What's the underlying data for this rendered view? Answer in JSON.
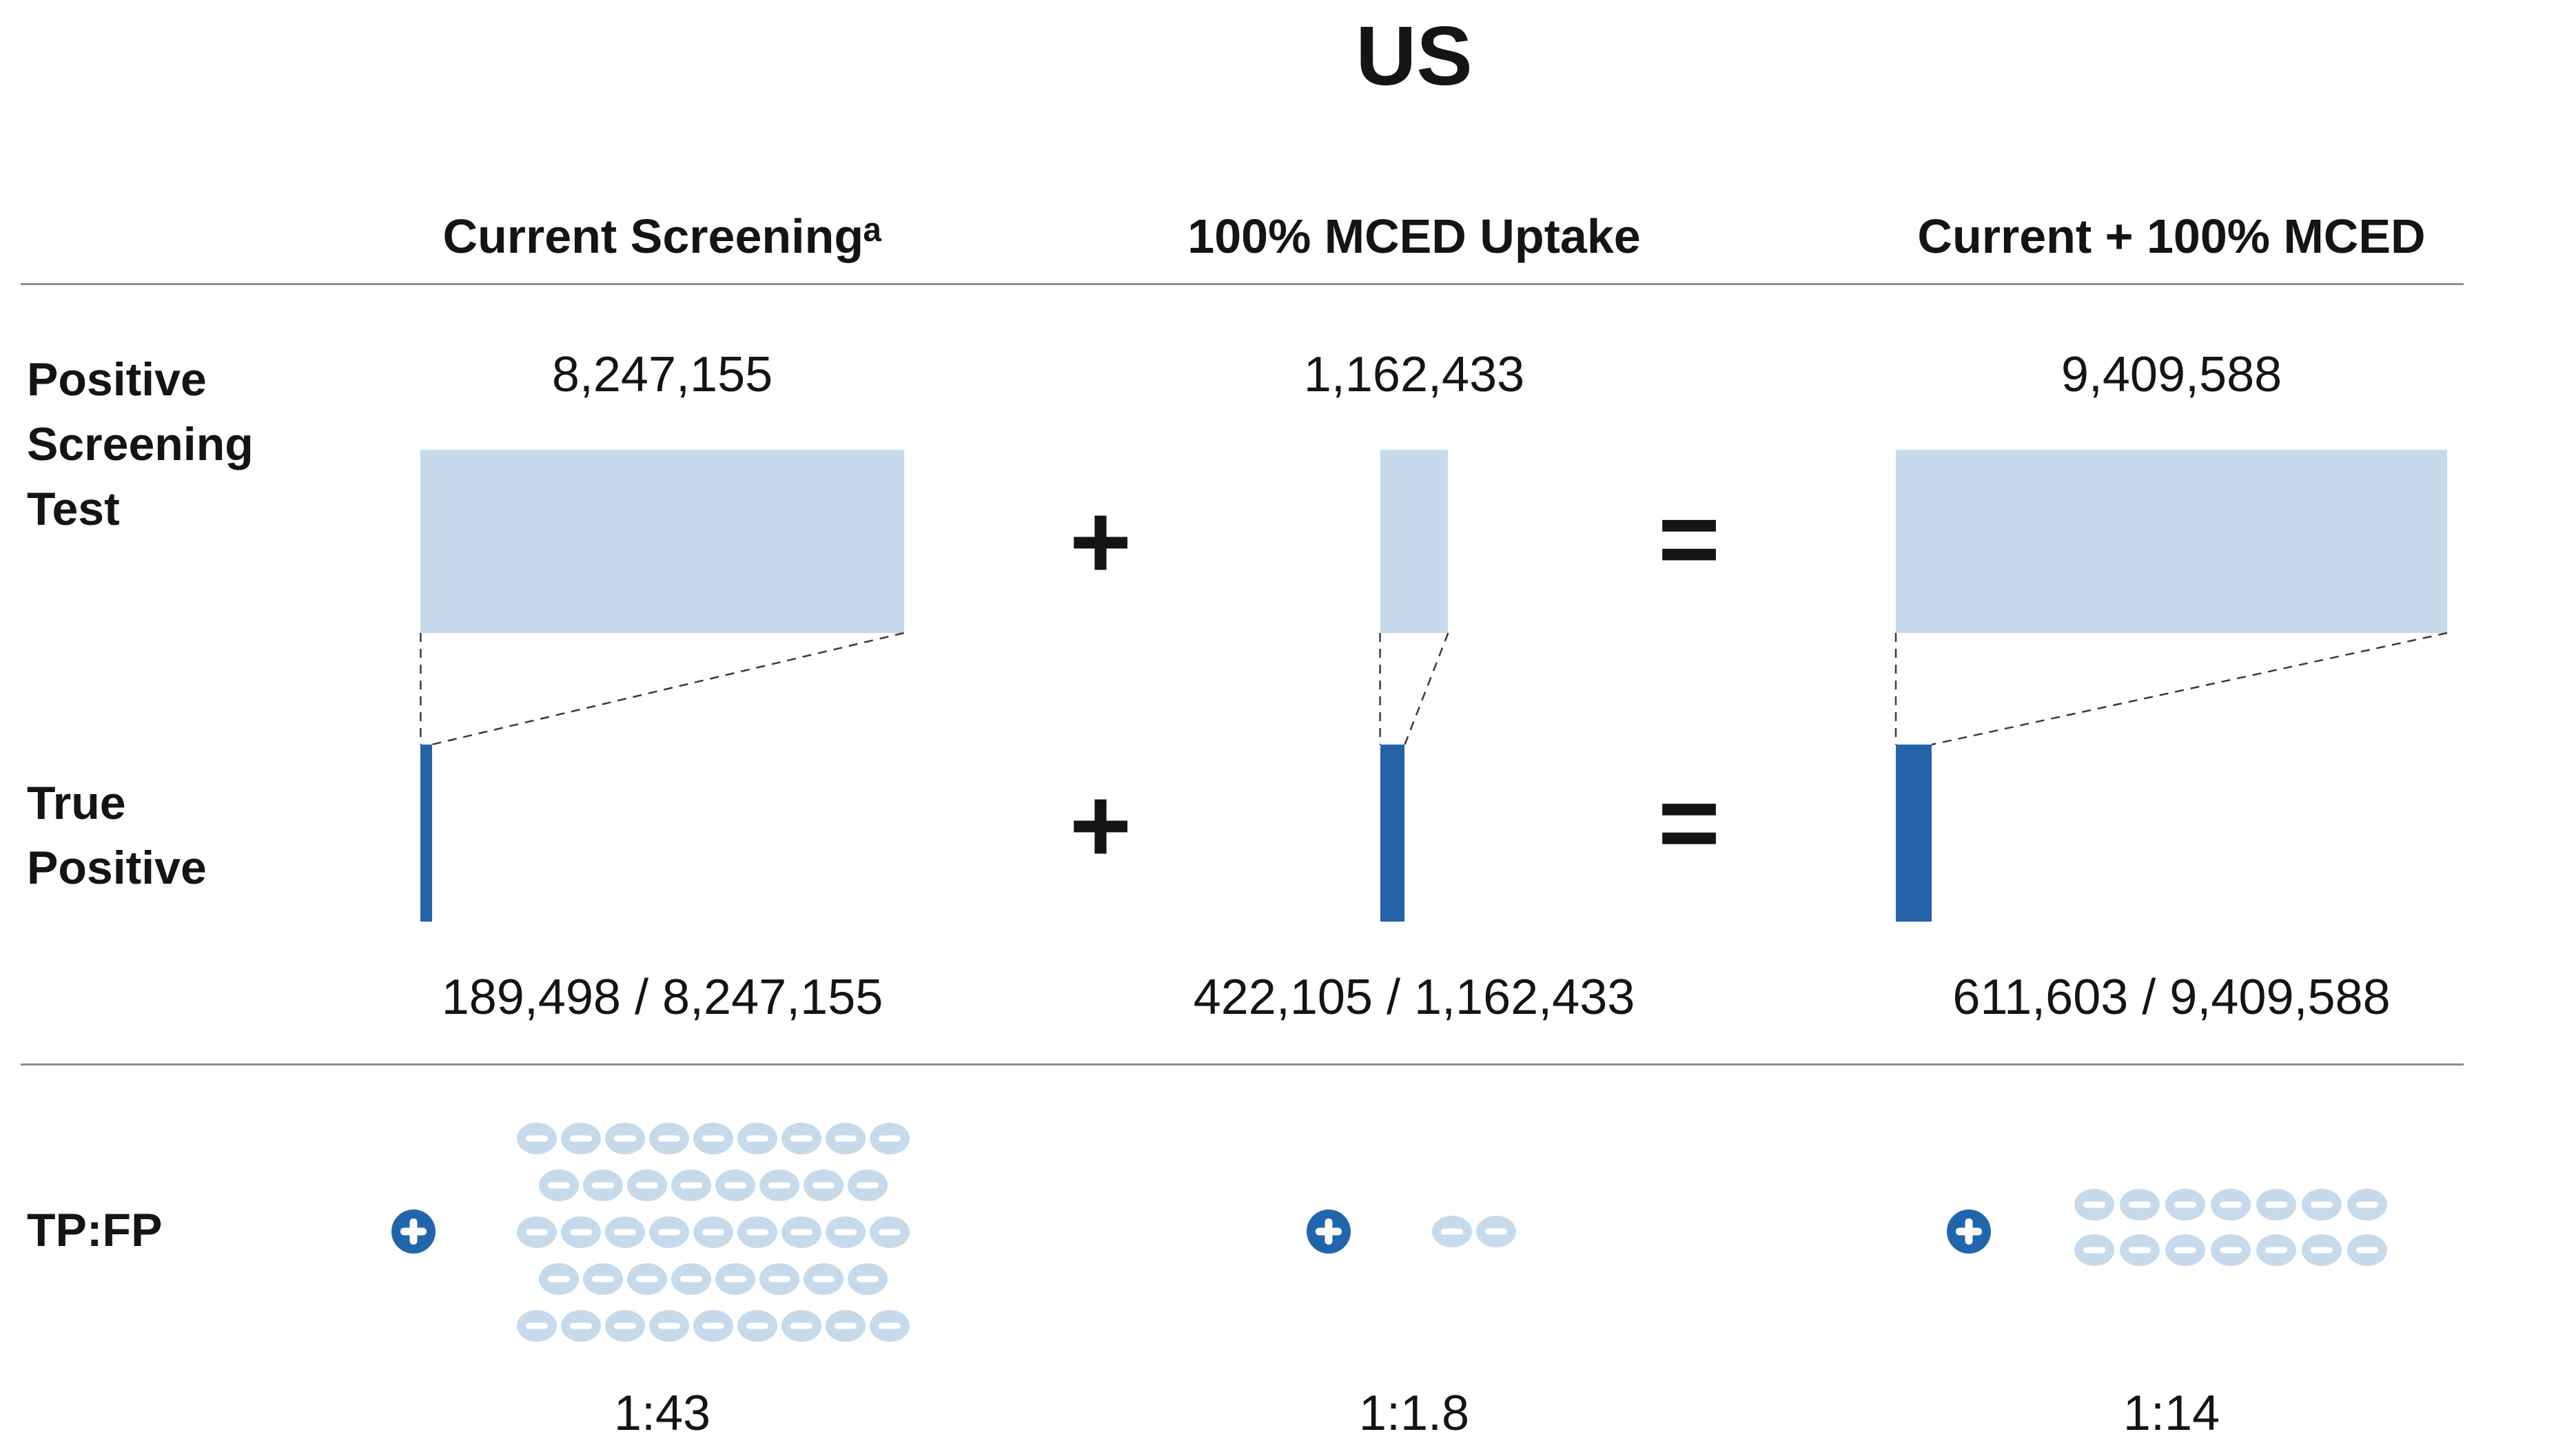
{
  "title": "US",
  "row_labels": {
    "positive": "Positive\nScreening\nTest",
    "true_positive": "True\nPositive",
    "ratio": "TP:FP"
  },
  "operators": {
    "plus": "+",
    "equals": "="
  },
  "colors": {
    "bar_light": "#C7DAEB",
    "bar_dark": "#2563A8",
    "icon_plus": "#2166AC",
    "icon_minus": "#C7DAEB",
    "text": "#141414",
    "divider": "#8F8F8F"
  },
  "chart_data": {
    "type": "bar",
    "title": "US",
    "categories": [
      "Current Screeningᵃ",
      "100% MCED Uptake",
      "Current + 100% MCED"
    ],
    "series": [
      {
        "name": "Positive Screening Test",
        "values": [
          8247155,
          1162433,
          9409588
        ]
      },
      {
        "name": "True Positive",
        "values": [
          189498,
          422105,
          611603
        ]
      }
    ],
    "relation": "Current Screening + 100% MCED Uptake = Current + 100% MCED",
    "legend": "none",
    "grid": false,
    "columns": [
      {
        "header": "Current Screeningᵃ",
        "positive_label": "8,247,155",
        "positive_value": 8247155,
        "tp_value": 189498,
        "tp_label": "189,498 / 8,247,155",
        "ratio_label": "1:43",
        "fp_count": 43,
        "fp_rows": [
          9,
          8,
          9,
          8,
          9
        ]
      },
      {
        "header": "100% MCED Uptake",
        "positive_label": "1,162,433",
        "positive_value": 1162433,
        "tp_value": 422105,
        "tp_label": "422,105 / 1,162,433",
        "ratio_label": "1:1.8",
        "fp_count": 2,
        "fp_rows": [
          2
        ]
      },
      {
        "header": "Current + 100% MCED",
        "positive_label": "9,409,588",
        "positive_value": 9409588,
        "tp_value": 611603,
        "tp_label": "611,603 / 9,409,588",
        "ratio_label": "1:14",
        "fp_count": 14,
        "fp_rows": [
          7,
          7
        ]
      }
    ]
  }
}
